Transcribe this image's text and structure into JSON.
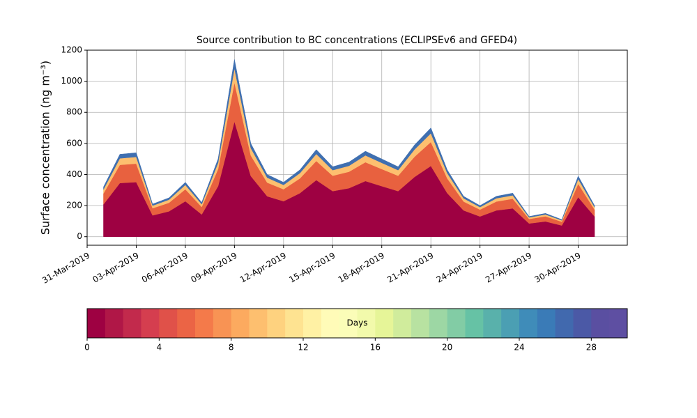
{
  "chart_data": {
    "type": "stacked_area",
    "title": "Source contribution to BC concentrations (ECLIPSEv6 and GFED4)",
    "y_label": "Surface concentration (ng m⁻³)",
    "x": [
      "2019-04-01",
      "2019-04-02",
      "2019-04-03",
      "2019-04-04",
      "2019-04-05",
      "2019-04-06",
      "2019-04-07",
      "2019-04-08",
      "2019-04-09",
      "2019-04-10",
      "2019-04-11",
      "2019-04-12",
      "2019-04-13",
      "2019-04-14",
      "2019-04-15",
      "2019-04-16",
      "2019-04-17",
      "2019-04-18",
      "2019-04-19",
      "2019-04-20",
      "2019-04-21",
      "2019-04-22",
      "2019-04-23",
      "2019-04-24",
      "2019-04-25",
      "2019-04-26",
      "2019-04-27",
      "2019-04-28",
      "2019-04-29",
      "2019-04-30",
      "2019-05-01"
    ],
    "series": [
      {
        "color": "#9e0142",
        "values": [
          208,
          345,
          351,
          137,
          163,
          228,
          143,
          325,
          741,
          390,
          260,
          228,
          280,
          364,
          293,
          312,
          358,
          325,
          293,
          384,
          455,
          280,
          169,
          130,
          169,
          182,
          85,
          98,
          72,
          254,
          130
        ]
      },
      {
        "color": "#e8613f",
        "values": [
          70,
          117,
          119,
          46,
          55,
          77,
          48,
          110,
          251,
          132,
          88,
          77,
          95,
          123,
          99,
          106,
          121,
          110,
          99,
          130,
          154,
          95,
          57,
          44,
          57,
          62,
          29,
          33,
          24,
          86,
          44
        ]
      },
      {
        "color": "#fdbf6f",
        "values": [
          26,
          42,
          43,
          17,
          20,
          28,
          18,
          40,
          91,
          48,
          32,
          28,
          34,
          45,
          36,
          38,
          44,
          40,
          36,
          47,
          56,
          34,
          21,
          16,
          21,
          22,
          10,
          12,
          9,
          31,
          16
        ]
      },
      {
        "color": "#3f6fb0",
        "values": [
          16,
          26,
          27,
          10,
          12,
          17,
          11,
          25,
          57,
          30,
          20,
          17,
          21,
          28,
          22,
          24,
          27,
          25,
          22,
          29,
          35,
          21,
          13,
          10,
          13,
          14,
          6,
          7,
          5,
          19,
          10
        ]
      }
    ],
    "xlim": [
      "2019-03-31",
      "2019-05-03"
    ],
    "xticks": [
      {
        "value": "2019-03-31",
        "label": "31-Mar-2019"
      },
      {
        "value": "2019-04-03",
        "label": "03-Apr-2019"
      },
      {
        "value": "2019-04-06",
        "label": "06-Apr-2019"
      },
      {
        "value": "2019-04-09",
        "label": "09-Apr-2019"
      },
      {
        "value": "2019-04-12",
        "label": "12-Apr-2019"
      },
      {
        "value": "2019-04-15",
        "label": "15-Apr-2019"
      },
      {
        "value": "2019-04-18",
        "label": "18-Apr-2019"
      },
      {
        "value": "2019-04-21",
        "label": "21-Apr-2019"
      },
      {
        "value": "2019-04-24",
        "label": "24-Apr-2019"
      },
      {
        "value": "2019-04-27",
        "label": "27-Apr-2019"
      },
      {
        "value": "2019-04-30",
        "label": "30-Apr-2019"
      }
    ],
    "ylim": [
      -55,
      1200
    ],
    "yticks": [
      0,
      200,
      400,
      600,
      800,
      1000,
      1200
    ],
    "grid": true,
    "colorbar": {
      "label": "Days",
      "lim": [
        0,
        30
      ],
      "ticks": [
        0,
        4,
        8,
        12,
        16,
        20,
        24,
        28
      ],
      "colors": [
        "#9e0142",
        "#b01747",
        "#c22a4c",
        "#d53e4f",
        "#e05149",
        "#eb6445",
        "#f47a4a",
        "#f89354",
        "#fcaa5f",
        "#fdbf6f",
        "#fed27f",
        "#fee391",
        "#fff1a4",
        "#fffbb8",
        "#fbfdb8",
        "#f2faab",
        "#e6f598",
        "#d0ec9c",
        "#b8e2a1",
        "#9dd7a4",
        "#82cca5",
        "#66c2a5",
        "#59b1ab",
        "#4b9fb3",
        "#3f8cb9",
        "#3a7bb7",
        "#4169ae",
        "#4b59a6",
        "#5a4fa1",
        "#5e4fa2"
      ]
    }
  }
}
